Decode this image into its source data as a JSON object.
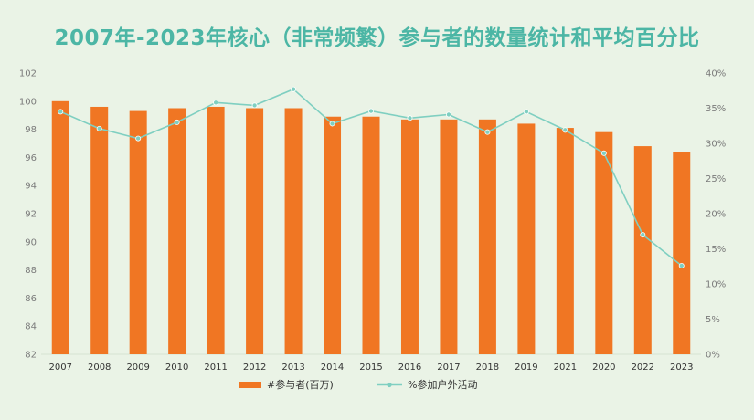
{
  "title": "2007年-2023年核心（非常频繁）参与者的数量统计和平均百分比",
  "colors": {
    "bar": "#f07623",
    "line": "#7fcfc1",
    "title": "#4cb6a5",
    "background": "#eaf3e6",
    "gridline": "#d6e3d2"
  },
  "chart_data": {
    "type": "bar",
    "title": "2007年-2023年核心（非常频繁）参与者的数量统计和平均百分比",
    "categories": [
      "2007",
      "2008",
      "2009",
      "2010",
      "2011",
      "2012",
      "2013",
      "2014",
      "2015",
      "2016",
      "2017",
      "2018",
      "2019",
      "2021",
      "2020",
      "2022",
      "2023"
    ],
    "series": [
      {
        "name": "#参与者(百万)",
        "type": "bar",
        "axis": "left",
        "values": [
          100.0,
          99.6,
          99.3,
          99.5,
          99.6,
          99.5,
          99.5,
          98.9,
          98.9,
          98.7,
          98.7,
          98.7,
          98.4,
          98.1,
          97.8,
          96.8,
          96.4
        ]
      },
      {
        "name": "%参加户外活动",
        "type": "line",
        "axis": "right",
        "values": [
          34.5,
          32.1,
          30.7,
          33.0,
          35.8,
          35.4,
          37.7,
          32.8,
          34.6,
          33.6,
          34.1,
          31.6,
          34.5,
          31.9,
          28.6,
          17.0,
          12.6
        ]
      }
    ],
    "left_axis": {
      "ylim": [
        82,
        102
      ],
      "ticks": [
        82,
        84,
        86,
        88,
        90,
        92,
        94,
        96,
        98,
        100,
        102
      ]
    },
    "right_axis": {
      "ylim": [
        0,
        40
      ],
      "ticks": [
        "0%",
        "5%",
        "10%",
        "15%",
        "20%",
        "25%",
        "30%",
        "35%",
        "40%"
      ]
    },
    "legend_position": "bottom",
    "grid": false
  }
}
